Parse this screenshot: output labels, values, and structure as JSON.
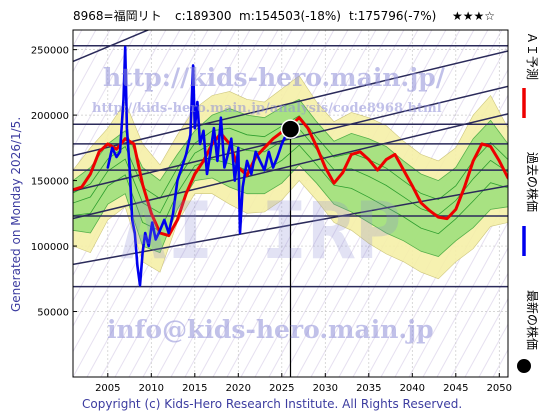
{
  "header": {
    "code_name": "8968=福岡リト",
    "close": "c:189300",
    "median": "m:154503(-18%)",
    "target": "t:175796(-7%)",
    "rating": "★★★☆"
  },
  "side_label": "Generated on Monday 2026/1/5.",
  "footer": "Copyright (c) Kids-Hero Research Institute. All Rights Reserved.",
  "watermarks": {
    "url": "http://kids-hero.main.jp/",
    "sub_url": "http://kids-hero.main.jp/analysis/code8968.html",
    "big": "AI IRP",
    "email": "info@kids-hero.main.jp"
  },
  "legend": [
    {
      "label": "ＡＩ予測",
      "color": "#ee0000"
    },
    {
      "label": "過去の株価",
      "color": "#0000ee"
    },
    {
      "label": "最新の株価",
      "color": "#000000"
    }
  ],
  "chart_data": {
    "type": "line",
    "xlim": [
      2001,
      2051
    ],
    "ylim": [
      0,
      265000
    ],
    "x_ticks": [
      2005,
      2010,
      2015,
      2020,
      2025,
      2030,
      2035,
      2040,
      2045,
      2050
    ],
    "y_ticks": [
      50000,
      100000,
      150000,
      200000,
      250000
    ],
    "grid": true,
    "horizontal_lines": [
      69000,
      123000,
      158000,
      178000,
      193000,
      253000
    ],
    "trend_lines": [
      {
        "x": [
          2001,
          2051
        ],
        "y": [
          121000,
          201000
        ]
      },
      {
        "x": [
          2001,
          2051
        ],
        "y": [
          142000,
          222000
        ]
      },
      {
        "x": [
          2001,
          2051
        ],
        "y": [
          169000,
          249000
        ]
      },
      {
        "x": [
          2001,
          2051
        ],
        "y": [
          86000,
          146000
        ]
      },
      {
        "x": [
          2001,
          2051
        ],
        "y": [
          241000,
          380000
        ]
      }
    ],
    "latest_point": {
      "x": 2026.0,
      "y": 189300
    },
    "latest_vline_x": 2026.0,
    "band_outer": {
      "x": [
        2001,
        2003,
        2005,
        2007,
        2009,
        2011,
        2013,
        2015,
        2017,
        2019,
        2021,
        2023,
        2025,
        2027,
        2029,
        2031,
        2033,
        2035,
        2037,
        2039,
        2041,
        2043,
        2045,
        2047,
        2049,
        2051
      ],
      "upper": [
        158000,
        175000,
        190000,
        210000,
        178000,
        162000,
        185000,
        205000,
        215000,
        218000,
        212000,
        210000,
        220000,
        230000,
        210000,
        195000,
        202000,
        198000,
        192000,
        180000,
        170000,
        165000,
        175000,
        200000,
        215000,
        190000
      ],
      "lower": [
        100000,
        95000,
        120000,
        130000,
        88000,
        80000,
        118000,
        140000,
        140000,
        132000,
        125000,
        126000,
        135000,
        150000,
        135000,
        118000,
        112000,
        102000,
        94000,
        88000,
        80000,
        75000,
        88000,
        98000,
        115000,
        118000
      ]
    },
    "band_inner": {
      "x": [
        2001,
        2003,
        2005,
        2007,
        2009,
        2011,
        2013,
        2015,
        2017,
        2019,
        2021,
        2023,
        2025,
        2027,
        2029,
        2031,
        2033,
        2035,
        2037,
        2039,
        2041,
        2043,
        2045,
        2047,
        2049,
        2051
      ],
      "upper": [
        150000,
        160000,
        178000,
        188000,
        160000,
        150000,
        170000,
        188000,
        200000,
        205000,
        200000,
        198000,
        206000,
        212000,
        195000,
        180000,
        186000,
        182000,
        176000,
        165000,
        155000,
        150000,
        160000,
        182000,
        196000,
        178000
      ],
      "lower": [
        112000,
        110000,
        132000,
        140000,
        100000,
        95000,
        128000,
        150000,
        152000,
        145000,
        140000,
        140000,
        148000,
        162000,
        148000,
        132000,
        126000,
        118000,
        110000,
        104000,
        96000,
        92000,
        104000,
        114000,
        128000,
        130000
      ]
    },
    "series": [
      {
        "name": "ＡＩ予測",
        "color": "#ee0000",
        "x": [
          2001,
          2002,
          2003,
          2004,
          2005,
          2006,
          2007,
          2008,
          2009,
          2010,
          2011,
          2012,
          2013,
          2014,
          2015,
          2016,
          2017,
          2018,
          2019,
          2020,
          2021,
          2022,
          2023,
          2024,
          2025,
          2026,
          2027,
          2028,
          2029,
          2030,
          2031,
          2032,
          2033,
          2034,
          2035,
          2036,
          2037,
          2038,
          2039,
          2040,
          2041,
          2042,
          2043,
          2044,
          2045,
          2046,
          2047,
          2048,
          2049,
          2050,
          2051
        ],
        "y": [
          143000,
          145000,
          155000,
          172000,
          178000,
          174000,
          182000,
          178000,
          147000,
          125000,
          110000,
          108000,
          120000,
          140000,
          155000,
          165000,
          178000,
          186000,
          178000,
          160000,
          154000,
          168000,
          175000,
          182000,
          187000,
          192000,
          198000,
          190000,
          176000,
          160000,
          148000,
          156000,
          170000,
          172000,
          166000,
          158000,
          166000,
          170000,
          158000,
          146000,
          133000,
          127000,
          122000,
          121000,
          128000,
          145000,
          165000,
          178000,
          176000,
          165000,
          152000
        ]
      },
      {
        "name": "過去の株価",
        "color": "#0000ee",
        "x": [
          2005.0,
          2005.5,
          2006.0,
          2006.4,
          2006.8,
          2007.0,
          2007.2,
          2007.5,
          2007.8,
          2008.1,
          2008.4,
          2008.7,
          2009.0,
          2009.3,
          2009.7,
          2010.1,
          2010.5,
          2011.0,
          2011.5,
          2012.0,
          2012.5,
          2013.0,
          2013.5,
          2014.0,
          2014.5,
          2014.8,
          2015.0,
          2015.3,
          2015.6,
          2016.0,
          2016.4,
          2016.8,
          2017.2,
          2017.6,
          2018.0,
          2018.4,
          2018.8,
          2019.2,
          2019.6,
          2020.0,
          2020.2,
          2020.5,
          2021.0,
          2021.5,
          2022.0,
          2022.5,
          2023.0,
          2023.5,
          2024.0,
          2024.5,
          2025.0,
          2025.5,
          2026.0
        ],
        "y": [
          160000,
          175000,
          168000,
          172000,
          212000,
          252000,
          190000,
          160000,
          120000,
          110000,
          85000,
          70000,
          95000,
          110000,
          100000,
          118000,
          105000,
          112000,
          120000,
          110000,
          125000,
          150000,
          160000,
          170000,
          185000,
          238000,
          190000,
          210000,
          178000,
          188000,
          155000,
          172000,
          190000,
          165000,
          198000,
          160000,
          170000,
          182000,
          150000,
          175000,
          110000,
          145000,
          165000,
          155000,
          172000,
          165000,
          158000,
          172000,
          160000,
          168000,
          178000,
          185000,
          189300
        ]
      }
    ]
  }
}
